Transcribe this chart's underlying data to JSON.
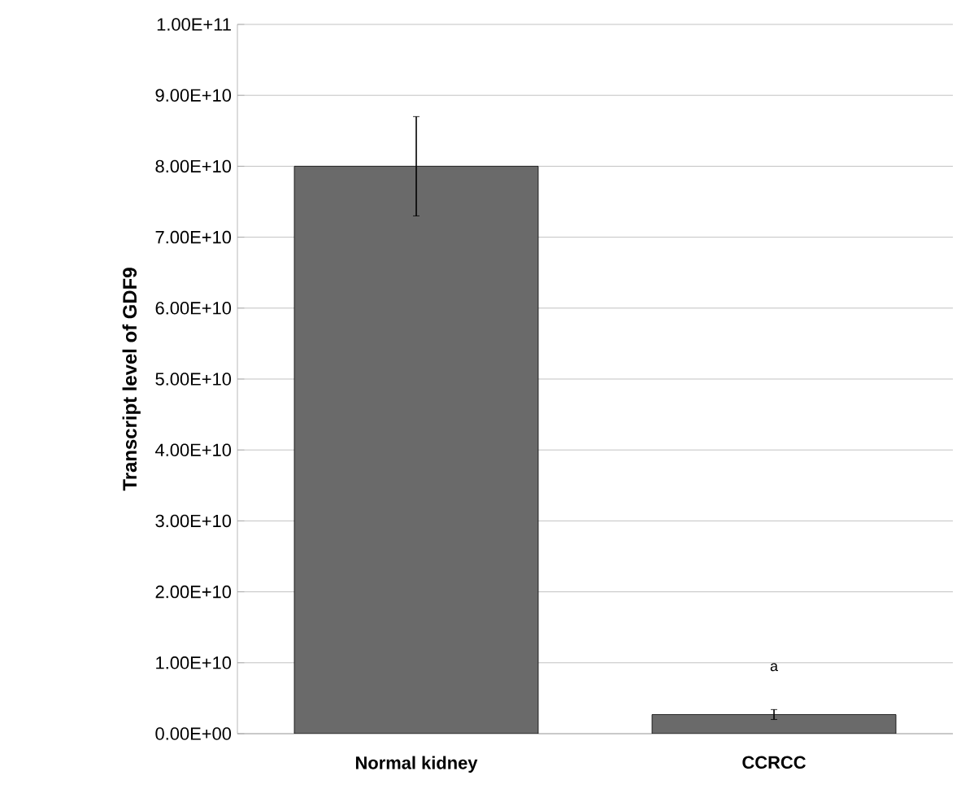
{
  "chart_data": {
    "type": "bar",
    "ylabel": "Transcript level of GDF9",
    "categories": [
      "Normal kidney",
      "CCRCC"
    ],
    "values": [
      80000000000,
      2700000000
    ],
    "errors": [
      7000000000,
      700000000
    ],
    "color": "#6a6a6a",
    "ylim": [
      0,
      100000000000
    ],
    "yticks": [
      {
        "value": 0,
        "label": "0.00E+00"
      },
      {
        "value": 10000000000,
        "label": "1.00E+10"
      },
      {
        "value": 20000000000,
        "label": "2.00E+10"
      },
      {
        "value": 30000000000,
        "label": "3.00E+10"
      },
      {
        "value": 40000000000,
        "label": "4.00E+10"
      },
      {
        "value": 50000000000,
        "label": "5.00E+10"
      },
      {
        "value": 60000000000,
        "label": "6.00E+10"
      },
      {
        "value": 70000000000,
        "label": "7.00E+10"
      },
      {
        "value": 80000000000,
        "label": "8.00E+10"
      },
      {
        "value": 90000000000,
        "label": "9.00E+10"
      },
      {
        "value": 100000000000,
        "label": "1.00E+11"
      }
    ],
    "grid": "y",
    "annotations": [
      "a"
    ]
  }
}
